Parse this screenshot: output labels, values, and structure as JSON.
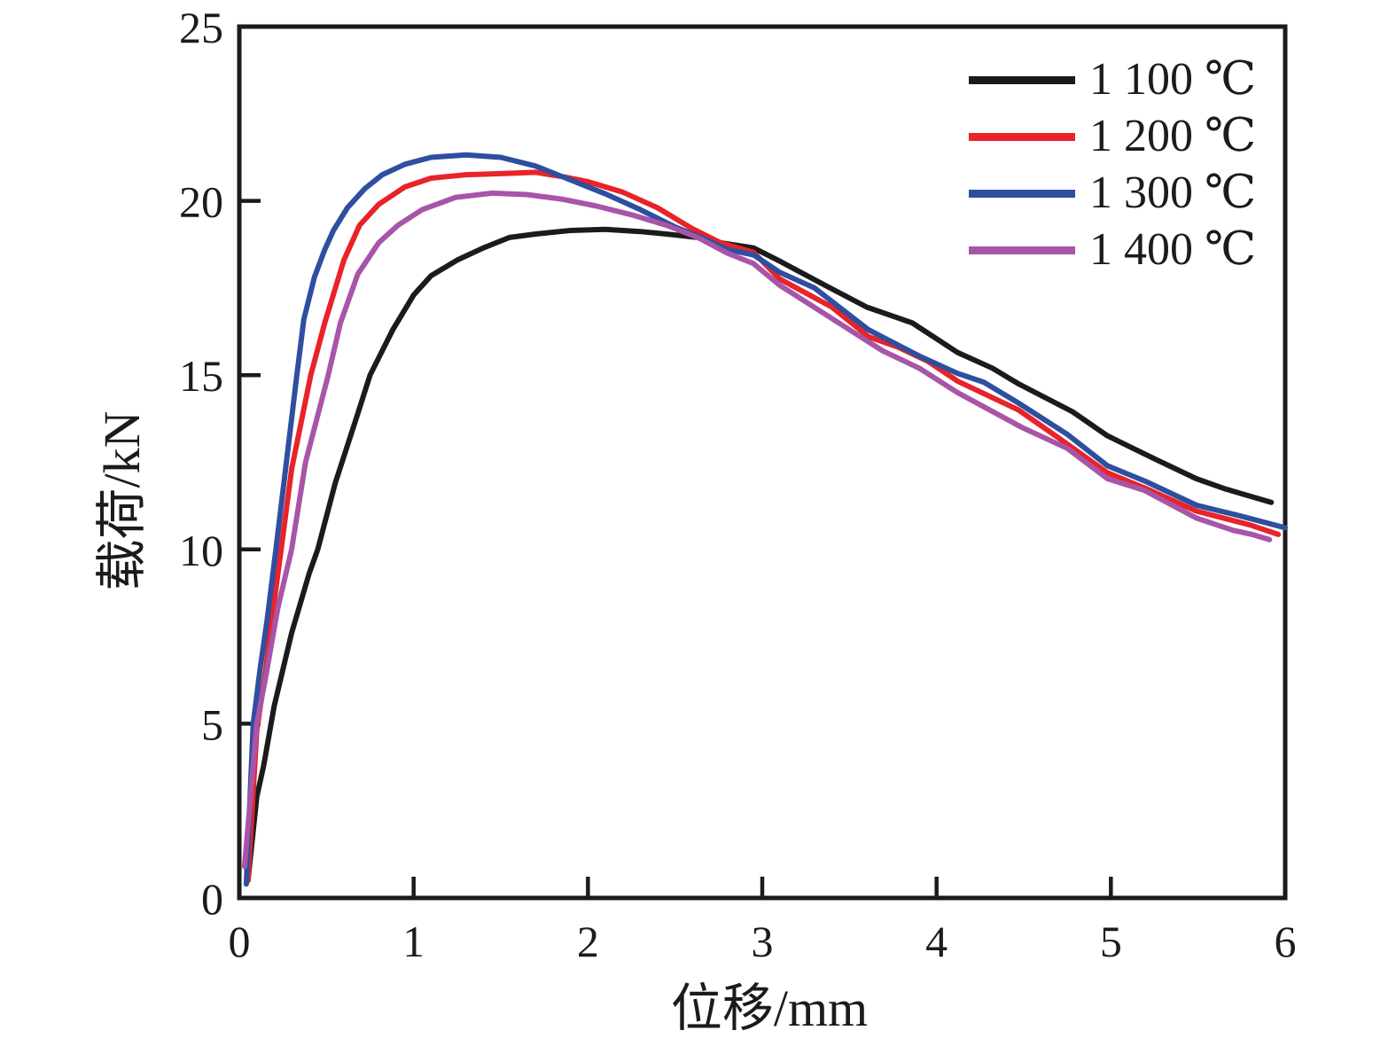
{
  "figure": {
    "background": "#ffffff",
    "axis_color": "#1b1b1b",
    "tick_label_color": "#1b1b1b"
  },
  "chart_data": {
    "type": "line",
    "title": "",
    "xlabel": "位移/mm",
    "ylabel": "载荷/kN",
    "xlim": [
      0,
      6
    ],
    "ylim": [
      0,
      25
    ],
    "x_ticks": [
      0,
      1,
      2,
      3,
      4,
      5,
      6
    ],
    "y_ticks": [
      0,
      5,
      10,
      15,
      20,
      25
    ],
    "grid": false,
    "legend_position": "top-right",
    "series": [
      {
        "name": "1 100 ℃",
        "color": "#1b1b1b",
        "points": [
          [
            0.05,
            0.5
          ],
          [
            0.1,
            2.9
          ],
          [
            0.14,
            3.8
          ],
          [
            0.2,
            5.5
          ],
          [
            0.3,
            7.6
          ],
          [
            0.4,
            9.3
          ],
          [
            0.45,
            10.0
          ],
          [
            0.55,
            11.9
          ],
          [
            0.68,
            13.9
          ],
          [
            0.75,
            15.0
          ],
          [
            0.88,
            16.3
          ],
          [
            1.0,
            17.3
          ],
          [
            1.1,
            17.85
          ],
          [
            1.25,
            18.3
          ],
          [
            1.4,
            18.65
          ],
          [
            1.55,
            18.95
          ],
          [
            1.7,
            19.05
          ],
          [
            1.9,
            19.15
          ],
          [
            2.1,
            19.18
          ],
          [
            2.3,
            19.12
          ],
          [
            2.45,
            19.05
          ],
          [
            2.63,
            18.95
          ],
          [
            2.76,
            18.8
          ],
          [
            2.95,
            18.65
          ],
          [
            3.1,
            18.27
          ],
          [
            3.37,
            17.55
          ],
          [
            3.6,
            16.95
          ],
          [
            3.86,
            16.5
          ],
          [
            4.12,
            15.65
          ],
          [
            4.32,
            15.2
          ],
          [
            4.47,
            14.75
          ],
          [
            4.78,
            13.95
          ],
          [
            4.98,
            13.26
          ],
          [
            5.25,
            12.6
          ],
          [
            5.49,
            12.03
          ],
          [
            5.66,
            11.73
          ],
          [
            5.92,
            11.35
          ]
        ]
      },
      {
        "name": "1 200 ℃",
        "color": "#e82329",
        "points": [
          [
            0.05,
            0.5
          ],
          [
            0.1,
            4.8
          ],
          [
            0.15,
            6.5
          ],
          [
            0.2,
            8.5
          ],
          [
            0.24,
            10.0
          ],
          [
            0.3,
            12.3
          ],
          [
            0.41,
            15.0
          ],
          [
            0.49,
            16.5
          ],
          [
            0.6,
            18.3
          ],
          [
            0.69,
            19.3
          ],
          [
            0.8,
            19.9
          ],
          [
            0.95,
            20.4
          ],
          [
            1.1,
            20.65
          ],
          [
            1.3,
            20.75
          ],
          [
            1.5,
            20.78
          ],
          [
            1.7,
            20.82
          ],
          [
            1.85,
            20.7
          ],
          [
            2.0,
            20.55
          ],
          [
            2.2,
            20.25
          ],
          [
            2.4,
            19.8
          ],
          [
            2.6,
            19.2
          ],
          [
            2.76,
            18.8
          ],
          [
            2.95,
            18.52
          ],
          [
            3.1,
            17.76
          ],
          [
            3.4,
            16.95
          ],
          [
            3.61,
            16.1
          ],
          [
            3.78,
            15.8
          ],
          [
            3.95,
            15.4
          ],
          [
            4.12,
            14.83
          ],
          [
            4.47,
            14.0
          ],
          [
            4.7,
            13.2
          ],
          [
            4.98,
            12.2
          ],
          [
            5.2,
            11.75
          ],
          [
            5.49,
            11.1
          ],
          [
            5.8,
            10.7
          ],
          [
            5.96,
            10.43
          ]
        ]
      },
      {
        "name": "1 300 ℃",
        "color": "#2e4fa0",
        "points": [
          [
            0.04,
            0.4
          ],
          [
            0.08,
            5.0
          ],
          [
            0.12,
            6.6
          ],
          [
            0.16,
            8.0
          ],
          [
            0.21,
            10.0
          ],
          [
            0.27,
            12.5
          ],
          [
            0.33,
            15.0
          ],
          [
            0.37,
            16.6
          ],
          [
            0.43,
            17.8
          ],
          [
            0.49,
            18.6
          ],
          [
            0.54,
            19.15
          ],
          [
            0.62,
            19.8
          ],
          [
            0.72,
            20.35
          ],
          [
            0.82,
            20.75
          ],
          [
            0.95,
            21.05
          ],
          [
            1.1,
            21.25
          ],
          [
            1.3,
            21.32
          ],
          [
            1.5,
            21.25
          ],
          [
            1.7,
            21.0
          ],
          [
            1.9,
            20.6
          ],
          [
            2.1,
            20.2
          ],
          [
            2.3,
            19.75
          ],
          [
            2.5,
            19.25
          ],
          [
            2.65,
            18.95
          ],
          [
            2.8,
            18.6
          ],
          [
            2.95,
            18.45
          ],
          [
            3.1,
            17.95
          ],
          [
            3.3,
            17.5
          ],
          [
            3.61,
            16.3
          ],
          [
            3.9,
            15.55
          ],
          [
            4.12,
            15.05
          ],
          [
            4.27,
            14.8
          ],
          [
            4.47,
            14.2
          ],
          [
            4.75,
            13.3
          ],
          [
            4.98,
            12.4
          ],
          [
            5.2,
            11.95
          ],
          [
            5.49,
            11.27
          ],
          [
            5.75,
            10.95
          ],
          [
            6.0,
            10.62
          ]
        ]
      },
      {
        "name": "1 400 ℃",
        "color": "#a855a8",
        "points": [
          [
            0.03,
            0.9
          ],
          [
            0.1,
            5.0
          ],
          [
            0.15,
            6.3
          ],
          [
            0.22,
            8.3
          ],
          [
            0.3,
            10.0
          ],
          [
            0.38,
            12.5
          ],
          [
            0.51,
            15.0
          ],
          [
            0.58,
            16.5
          ],
          [
            0.68,
            17.9
          ],
          [
            0.8,
            18.8
          ],
          [
            0.91,
            19.3
          ],
          [
            1.05,
            19.75
          ],
          [
            1.24,
            20.1
          ],
          [
            1.45,
            20.22
          ],
          [
            1.65,
            20.18
          ],
          [
            1.85,
            20.05
          ],
          [
            2.05,
            19.85
          ],
          [
            2.25,
            19.6
          ],
          [
            2.45,
            19.3
          ],
          [
            2.63,
            18.95
          ],
          [
            2.8,
            18.5
          ],
          [
            2.95,
            18.2
          ],
          [
            3.1,
            17.58
          ],
          [
            3.36,
            16.75
          ],
          [
            3.69,
            15.7
          ],
          [
            3.9,
            15.2
          ],
          [
            4.12,
            14.5
          ],
          [
            4.49,
            13.5
          ],
          [
            4.75,
            12.9
          ],
          [
            4.98,
            12.03
          ],
          [
            5.19,
            11.7
          ],
          [
            5.49,
            10.9
          ],
          [
            5.7,
            10.55
          ],
          [
            5.81,
            10.43
          ],
          [
            5.91,
            10.28
          ]
        ]
      }
    ]
  }
}
